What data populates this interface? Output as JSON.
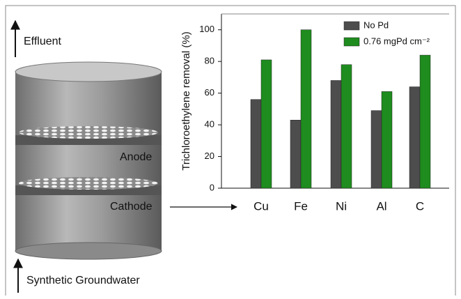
{
  "diagram": {
    "effluent": "Effluent",
    "anode": "Anode",
    "cathode": "Cathode",
    "inlet": "Synthetic Groundwater"
  },
  "chart_data": {
    "type": "bar",
    "y_label": "Trichloroethylene removal (%)",
    "categories": [
      "Cu",
      "Fe",
      "Ni",
      "Al",
      "C"
    ],
    "series": [
      {
        "name": "No Pd",
        "color": "#4d4d4d",
        "values": [
          56,
          43,
          68,
          49,
          64
        ]
      },
      {
        "name": "0.76 mgPd cm⁻²",
        "color": "#1e8c1e",
        "values": [
          81,
          100,
          78,
          61,
          84
        ]
      }
    ],
    "ylim": [
      0,
      110
    ],
    "yticks": [
      0,
      20,
      40,
      60,
      80,
      100
    ],
    "legend": "upper right"
  }
}
